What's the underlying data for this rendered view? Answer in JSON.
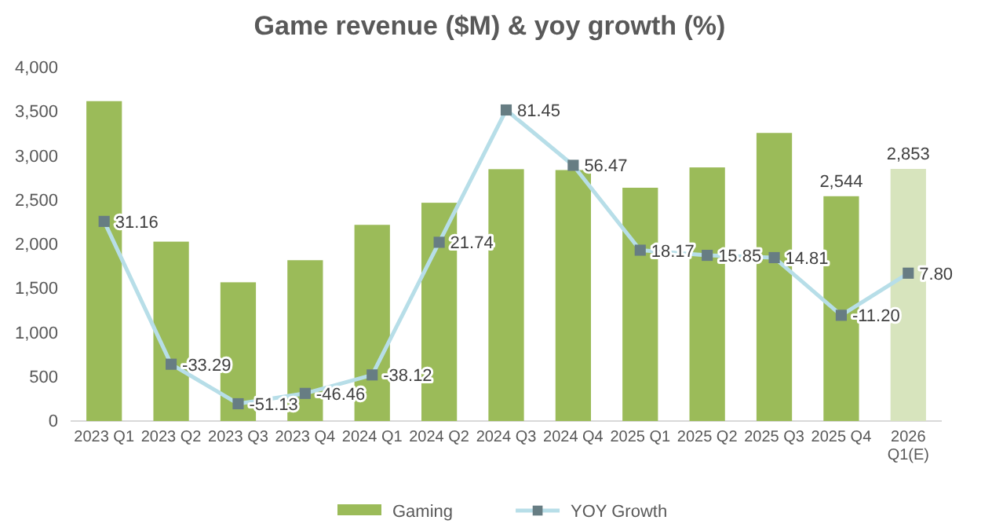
{
  "chart_data": {
    "type": "bar",
    "title": "Game revenue ($M) & yoy growth (%)",
    "categories": [
      "2023 Q1",
      "2023 Q2",
      "2023 Q3",
      "2023 Q4",
      "2024 Q1",
      "2024 Q2",
      "2024 Q3",
      "2024 Q4",
      "2025 Q1",
      "2025 Q2",
      "2025 Q3",
      "2025 Q4",
      "2026 Q1(E)"
    ],
    "series": [
      {
        "name": "Gaming",
        "colors": [
          "#9bbb59",
          "#9bbb59",
          "#9bbb59",
          "#9bbb59",
          "#9bbb59",
          "#9bbb59",
          "#9bbb59",
          "#9bbb59",
          "#9bbb59",
          "#9bbb59",
          "#9bbb59",
          "#9bbb59",
          "#d7e4bd"
        ],
        "values": [
          3620,
          2030,
          1570,
          1820,
          2220,
          2470,
          2850,
          2840,
          2640,
          2870,
          3260,
          2544,
          2853
        ],
        "value_labels": [
          null,
          null,
          null,
          null,
          null,
          null,
          null,
          null,
          null,
          null,
          null,
          "2,544",
          "2,853"
        ]
      },
      {
        "name": "YOY Growth",
        "type": "line",
        "axis": "y2",
        "color": "#b7dee8",
        "marker": "square",
        "values": [
          31.16,
          -33.29,
          -51.13,
          -46.46,
          -38.12,
          21.74,
          81.45,
          56.47,
          18.17,
          15.85,
          14.81,
          -11.2,
          7.8
        ],
        "value_labels": [
          "31.16",
          "-33.29",
          "-51.13",
          "-46.46",
          "-38.12",
          "21.74",
          "81.45",
          "56.47",
          "18.17",
          "15.85",
          "14.81",
          "-11.20",
          "7.80"
        ]
      }
    ],
    "ylim": [
      0,
      4000
    ],
    "yticks": [
      {
        "value": 0,
        "label": "0"
      },
      {
        "value": 500,
        "label": "500"
      },
      {
        "value": 1000,
        "label": "1,000"
      },
      {
        "value": 1500,
        "label": "1,500"
      },
      {
        "value": 2000,
        "label": "2,000"
      },
      {
        "value": 2500,
        "label": "2,500"
      },
      {
        "value": 3000,
        "label": "3,000"
      },
      {
        "value": 3500,
        "label": "3,500"
      },
      {
        "value": 4000,
        "label": "4,000"
      }
    ],
    "tick_labels": "xy",
    "grid": false,
    "legend": "bottom"
  }
}
